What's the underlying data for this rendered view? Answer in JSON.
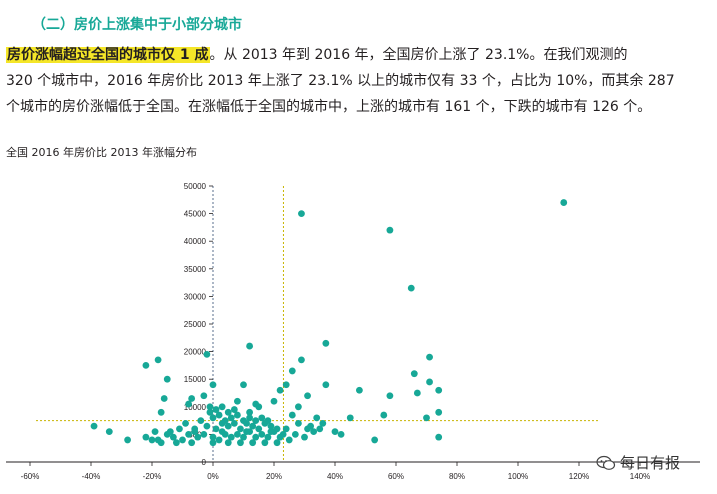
{
  "heading": "（二）房价上涨集中于小部分城市",
  "paragraph": {
    "highlight": "房价涨幅超过全国的城市仅 1 成",
    "line1_rest": "。从 2013 年到 2016 年，全国房价上涨了 23.1%。在我们观测的",
    "line2": "320 个城市中，2016 年房价比 2013 年上涨了 23.1% 以上的城市仅有 33 个，占比为 10%，而其余 287",
    "line3": "个城市的房价涨幅低于全国。在涨幅低于全国的城市中，上涨的城市有 161 个，下跌的城市有 126 个。"
  },
  "chart_title": "全国 2016 年房价比 2013 年涨幅分布",
  "watermark": {
    "text": "每日有报",
    "icon": "wechat-icon"
  },
  "colors": {
    "accent": "#17a897",
    "point": "#17a897",
    "reference_line": "#c8b400",
    "zero_line": "#5a6f8c",
    "highlight": "#f5e628"
  },
  "chart_data": {
    "type": "scatter",
    "title": "全国 2016 年房价比 2013 年涨幅分布",
    "xlabel": "",
    "ylabel": "",
    "xlim": [
      -0.65,
      1.45
    ],
    "ylim": [
      0,
      50000
    ],
    "x_ticks": [
      -0.6,
      -0.4,
      -0.2,
      0,
      0.2,
      0.4,
      0.6,
      0.8,
      1.0,
      1.2,
      1.4
    ],
    "x_tick_labels": [
      "-60%",
      "-40%",
      "-20%",
      "0%",
      "20%",
      "40%",
      "60%",
      "80%",
      "100%",
      "120%",
      "140%"
    ],
    "y_ticks": [
      0,
      5000,
      10000,
      15000,
      20000,
      25000,
      30000,
      35000,
      40000,
      45000,
      50000
    ],
    "y_tick_labels": [
      "0",
      "5000",
      "10000",
      "15000",
      "20000",
      "25000",
      "30000",
      "35000",
      "40000",
      "45000",
      "50000"
    ],
    "reference_lines": {
      "x": [
        0,
        0.231
      ],
      "y": [
        7500
      ]
    },
    "grid": false,
    "series": [
      {
        "points": [
          [
            1.15,
            47000
          ],
          [
            0.29,
            45000
          ],
          [
            0.58,
            42000
          ],
          [
            0.65,
            31500
          ],
          [
            0.37,
            21500
          ],
          [
            0.12,
            21000
          ],
          [
            -0.02,
            19500
          ],
          [
            -0.18,
            18500
          ],
          [
            -0.22,
            17500
          ],
          [
            0.29,
            18500
          ],
          [
            0.71,
            19000
          ],
          [
            0.66,
            16000
          ],
          [
            0.26,
            16500
          ],
          [
            -0.15,
            15000
          ],
          [
            0.24,
            14000
          ],
          [
            0.71,
            14500
          ],
          [
            0.1,
            14000
          ],
          [
            0.0,
            14000
          ],
          [
            0.22,
            13000
          ],
          [
            0.37,
            14000
          ],
          [
            0.74,
            13000
          ],
          [
            0.67,
            12500
          ],
          [
            0.48,
            13000
          ],
          [
            0.58,
            12000
          ],
          [
            0.31,
            12000
          ],
          [
            -0.16,
            11500
          ],
          [
            -0.07,
            11500
          ],
          [
            -0.03,
            12000
          ],
          [
            0.2,
            11000
          ],
          [
            0.28,
            10000
          ],
          [
            0.74,
            9000
          ],
          [
            0.56,
            8500
          ],
          [
            0.45,
            8000
          ],
          [
            0.7,
            8000
          ],
          [
            0.08,
            11000
          ],
          [
            0.14,
            10500
          ],
          [
            0.15,
            10000
          ],
          [
            0.12,
            9000
          ],
          [
            0.26,
            8500
          ],
          [
            0.34,
            8000
          ],
          [
            -0.17,
            9000
          ],
          [
            -0.08,
            10500
          ],
          [
            -0.01,
            10000
          ],
          [
            0.03,
            10000
          ],
          [
            0.35,
            6000
          ],
          [
            0.31,
            6000
          ],
          [
            0.4,
            5500
          ],
          [
            0.42,
            5000
          ],
          [
            0.36,
            7000
          ],
          [
            0.33,
            5500
          ],
          [
            0.27,
            5000
          ],
          [
            0.23,
            5000
          ],
          [
            0.53,
            4000
          ],
          [
            0.74,
            4500
          ],
          [
            -0.39,
            6500
          ],
          [
            -0.34,
            5500
          ],
          [
            -0.28,
            4000
          ],
          [
            -0.22,
            4500
          ],
          [
            -0.2,
            4000
          ],
          [
            -0.17,
            3500
          ],
          [
            -0.13,
            4500
          ],
          [
            -0.1,
            4000
          ],
          [
            -0.08,
            5000
          ],
          [
            -0.05,
            4500
          ],
          [
            -0.03,
            5000
          ],
          [
            0.0,
            4500
          ],
          [
            0.02,
            4000
          ],
          [
            0.04,
            5000
          ],
          [
            0.06,
            4500
          ],
          [
            0.08,
            5000
          ],
          [
            0.1,
            4500
          ],
          [
            0.12,
            5500
          ],
          [
            0.14,
            4500
          ],
          [
            0.16,
            5000
          ],
          [
            0.18,
            4500
          ],
          [
            0.2,
            5500
          ],
          [
            0.22,
            4500
          ],
          [
            -0.18,
            4000
          ],
          [
            -0.14,
            5500
          ],
          [
            -0.11,
            6000
          ],
          [
            -0.06,
            6000
          ],
          [
            -0.02,
            6500
          ],
          [
            0.01,
            6000
          ],
          [
            0.03,
            7000
          ],
          [
            0.05,
            6500
          ],
          [
            0.07,
            7000
          ],
          [
            0.09,
            6000
          ],
          [
            0.11,
            7000
          ],
          [
            0.13,
            6500
          ],
          [
            0.15,
            6000
          ],
          [
            0.17,
            7000
          ],
          [
            0.19,
            6500
          ],
          [
            0.21,
            6000
          ],
          [
            -0.09,
            7000
          ],
          [
            -0.04,
            7500
          ],
          [
            0.0,
            8000
          ],
          [
            0.02,
            8500
          ],
          [
            0.04,
            7500
          ],
          [
            0.06,
            8000
          ],
          [
            0.08,
            8500
          ],
          [
            0.1,
            7500
          ],
          [
            0.12,
            8000
          ],
          [
            0.14,
            7500
          ],
          [
            0.16,
            8000
          ],
          [
            0.18,
            7500
          ],
          [
            -0.01,
            9000
          ],
          [
            0.01,
            9500
          ],
          [
            0.05,
            9000
          ],
          [
            0.07,
            9500
          ],
          [
            -0.15,
            5000
          ],
          [
            -0.12,
            3500
          ],
          [
            -0.07,
            3500
          ],
          [
            0.0,
            3500
          ],
          [
            0.05,
            3500
          ],
          [
            0.09,
            3500
          ],
          [
            0.13,
            3500
          ],
          [
            0.17,
            3500
          ],
          [
            0.21,
            3500
          ],
          [
            0.25,
            4000
          ],
          [
            0.3,
            4500
          ],
          [
            -0.19,
            5500
          ],
          [
            -0.06,
            5500
          ],
          [
            0.03,
            5500
          ],
          [
            0.11,
            5500
          ],
          [
            0.19,
            5500
          ],
          [
            0.24,
            6000
          ],
          [
            0.28,
            7000
          ],
          [
            0.32,
            6500
          ]
        ]
      }
    ],
    "x_range_note": "",
    "legend": "none"
  }
}
